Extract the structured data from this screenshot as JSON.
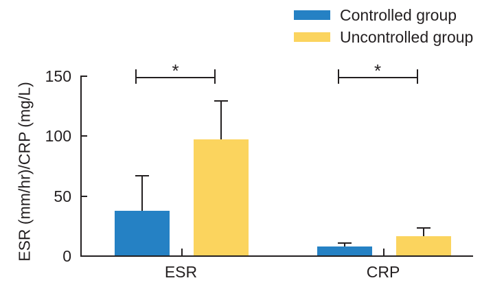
{
  "figure": {
    "background": "#ffffff",
    "text_color": "#231f20",
    "axis_color": "#231f20"
  },
  "chart_data": {
    "type": "bar",
    "title": "",
    "xlabel": "",
    "ylabel": "ESR (mm/hr)/CRP (mg/L)",
    "categories": [
      "ESR",
      "CRP"
    ],
    "yticks": [
      0,
      50,
      100,
      150
    ],
    "ylim": [
      0,
      150
    ],
    "grid": false,
    "legend_position": "top-right",
    "series": [
      {
        "name": "Controlled group",
        "color": "#2581c4",
        "values": [
          37,
          7.5
        ],
        "errors_plus": [
          30,
          3.5
        ]
      },
      {
        "name": "Uncontrolled group",
        "color": "#fbd45e",
        "values": [
          96.5,
          16
        ],
        "errors_plus": [
          33,
          7.5
        ]
      }
    ],
    "significance": [
      {
        "category": "ESR",
        "label": "*"
      },
      {
        "category": "CRP",
        "label": "*"
      }
    ]
  }
}
